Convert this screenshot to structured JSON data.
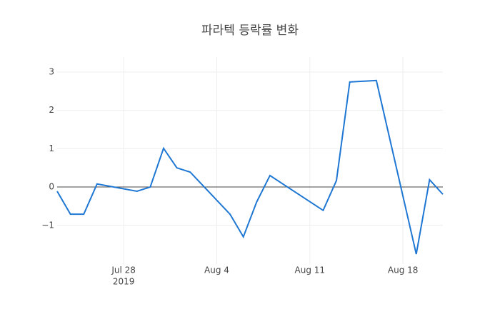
{
  "chart_data": {
    "type": "line",
    "title": "파라텍 등락률 변화",
    "x": [
      "2019-07-23",
      "2019-07-24",
      "2019-07-25",
      "2019-07-26",
      "2019-07-29",
      "2019-07-30",
      "2019-07-31",
      "2019-08-01",
      "2019-08-02",
      "2019-08-05",
      "2019-08-06",
      "2019-08-07",
      "2019-08-08",
      "2019-08-12",
      "2019-08-13",
      "2019-08-14",
      "2019-08-16",
      "2019-08-19",
      "2019-08-20",
      "2019-08-21"
    ],
    "series": [
      {
        "color": "#1f77d4",
        "values": [
          -0.11,
          -0.71,
          -0.71,
          0.08,
          -0.11,
          0.0,
          1.01,
          0.5,
          0.39,
          -0.71,
          -1.3,
          -0.39,
          0.3,
          -0.61,
          0.17,
          2.74,
          2.78,
          -1.75,
          0.19,
          -0.19
        ]
      }
    ],
    "xlim": [
      "2019-07-23",
      "2019-08-21"
    ],
    "xticks": [
      {
        "value": "2019-07-28",
        "label": "Jul 28"
      },
      {
        "value": "2019-08-04",
        "label": "Aug 4"
      },
      {
        "value": "2019-08-11",
        "label": "Aug 11"
      },
      {
        "value": "2019-08-18",
        "label": "Aug 18"
      }
    ],
    "x_year": "2019",
    "ylim": [
      -2.01,
      3.39
    ],
    "yticks": [
      {
        "value": -1,
        "label": "−1"
      },
      0,
      1,
      2,
      3
    ],
    "grid": true,
    "zero_line": true
  }
}
